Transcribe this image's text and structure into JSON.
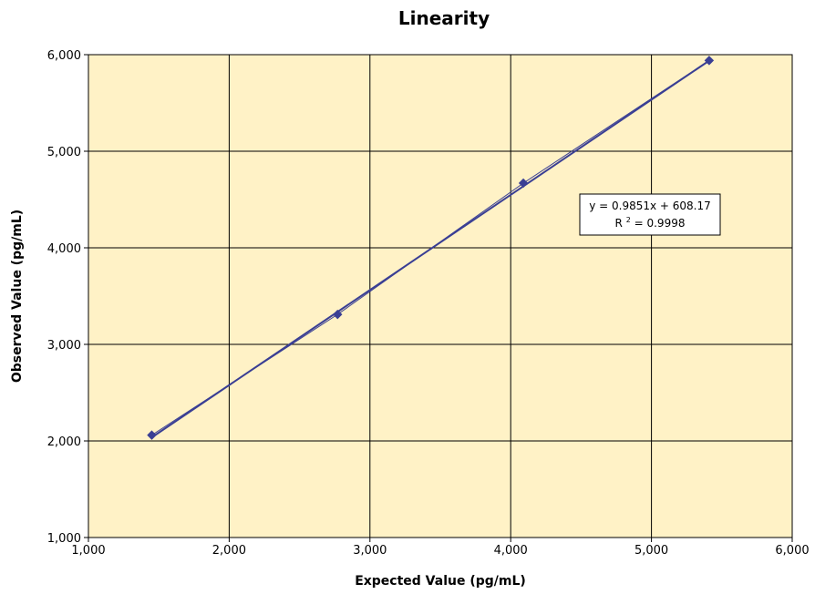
{
  "chart_data": {
    "type": "scatter",
    "title": "Linearity",
    "xlabel": "Expected Value (pg/mL)",
    "ylabel": "Observed Value (pg/mL)",
    "xlim": [
      1000,
      6000
    ],
    "ylim": [
      1000,
      6000
    ],
    "x_ticks": [
      "1,000",
      "2,000",
      "3,000",
      "4,000",
      "5,000",
      "6,000"
    ],
    "y_ticks": [
      "1,000",
      "2,000",
      "3,000",
      "4,000",
      "5,000",
      "6,000"
    ],
    "grid": true,
    "series": [
      {
        "points": [
          {
            "x": 1450,
            "y": 2060
          },
          {
            "x": 2770,
            "y": 3310
          },
          {
            "x": 4090,
            "y": 4670
          },
          {
            "x": 5410,
            "y": 5940
          }
        ]
      }
    ],
    "trendline": {
      "slope": 0.9851,
      "intercept": 608.17,
      "equation_text": "y = 0.9851x + 608.17",
      "r2_label": "R",
      "r2_sup": "2",
      "r2_value": " = 0.9998"
    },
    "colors": {
      "plot_background": "#FFF2C6",
      "series": "#3A3F94",
      "grid": "#000000"
    }
  }
}
